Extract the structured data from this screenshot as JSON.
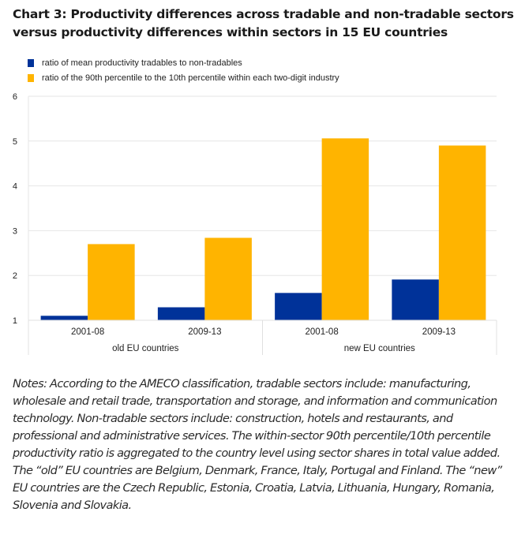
{
  "title": "Chart 3: Productivity differences across tradable and non-tradable sectors versus productivity differences within sectors in 15 EU countries",
  "colors": {
    "blue": "#003299",
    "yellow": "#FFB400",
    "grid": "#e6e6e6",
    "axis_border": "#e0e0e0"
  },
  "legend": [
    {
      "label": "ratio of mean productivity tradables to non-tradables",
      "color": "#003299"
    },
    {
      "label": "ratio of the 90th percentile to the 10th percentile within each two-digit industry",
      "color": "#FFB400"
    }
  ],
  "chart_data": {
    "type": "bar",
    "title": "Chart 3: Productivity differences across tradable and non-tradable sectors versus productivity differences within sectors in 15 EU countries",
    "xlabel": "",
    "ylabel": "",
    "ylim": [
      1,
      6
    ],
    "yticks": [
      1,
      2,
      3,
      4,
      5,
      6
    ],
    "grid": true,
    "legend_position": "top-left",
    "groups": [
      {
        "label": "old EU countries",
        "categories": [
          "2001-08",
          "2009-13"
        ]
      },
      {
        "label": "new EU countries",
        "categories": [
          "2001-08",
          "2009-13"
        ]
      }
    ],
    "categories": [
      "2001-08",
      "2009-13",
      "2001-08",
      "2009-13"
    ],
    "series": [
      {
        "name": "ratio of mean productivity tradables to non-tradables",
        "color": "#003299",
        "values": [
          1.1,
          1.29,
          1.61,
          1.91
        ]
      },
      {
        "name": "ratio of the 90th percentile to the 10th percentile within each two-digit industry",
        "color": "#FFB400",
        "values": [
          2.7,
          2.84,
          5.06,
          4.9
        ]
      }
    ]
  },
  "notes": "Notes: According to the AMECO classification, tradable sectors include: manufacturing, wholesale and retail trade, transportation and storage, and information and communication technology. Non-tradable sectors include: construction, hotels and restaurants, and professional and administrative services. The within-sector 90th percentile/10th percentile productivity ratio is aggregated to the country level using sector shares in total value added. The “old” EU countries are Belgium, Denmark, France, Italy, Portugal and Finland. The “new” EU countries are the Czech Republic, Estonia, Croatia, Latvia, Lithuania, Hungary, Romania, Slovenia and Slovakia."
}
